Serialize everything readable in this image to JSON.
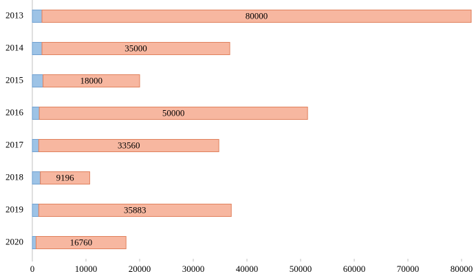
{
  "chart_data": {
    "type": "stacked-barh",
    "categories": [
      "2013",
      "2014",
      "2015",
      "2016",
      "2017",
      "2018",
      "2019",
      "2020"
    ],
    "series": [
      {
        "color": "#9dc3e6",
        "values": [
          1800,
          1800,
          2000,
          1300,
          1200,
          1500,
          1200,
          700
        ]
      },
      {
        "color": "#f7b7a0",
        "values": [
          80000,
          35000,
          18000,
          50000,
          33560,
          9196,
          35883,
          16760
        ]
      }
    ],
    "xlim": [
      0,
      82000
    ],
    "xticks": [
      0,
      10000,
      20000,
      30000,
      40000,
      50000,
      60000,
      70000,
      80000
    ],
    "label_series": 1
  }
}
